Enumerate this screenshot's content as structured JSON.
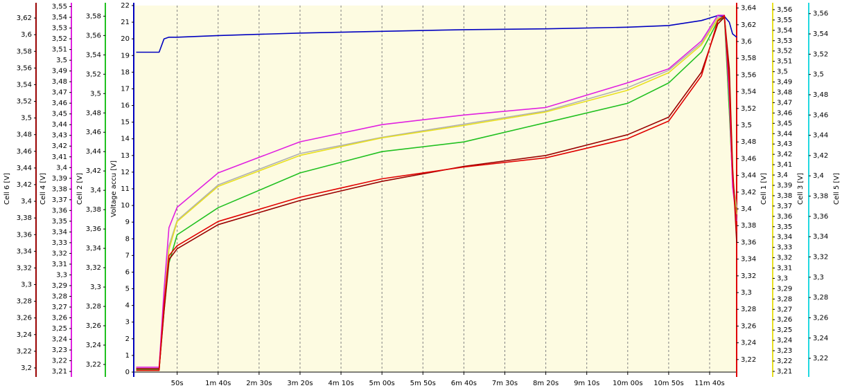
{
  "chart_data": {
    "type": "line",
    "x": [
      0,
      28,
      34,
      40,
      50,
      100,
      200,
      300,
      400,
      500,
      600,
      650,
      690,
      710,
      718,
      724,
      728,
      733
    ],
    "xlim": [
      -3,
      733
    ],
    "xticks": [
      {
        "value": 50,
        "label": "50s"
      },
      {
        "value": 100,
        "label": "1m 40s"
      },
      {
        "value": 150,
        "label": "2m 30s"
      },
      {
        "value": 200,
        "label": "3m 20s"
      },
      {
        "value": 250,
        "label": "4m 10s"
      },
      {
        "value": 300,
        "label": "5m 00s"
      },
      {
        "value": 350,
        "label": "5m 50s"
      },
      {
        "value": 400,
        "label": "6m 40s"
      },
      {
        "value": 450,
        "label": "7m 30s"
      },
      {
        "value": 500,
        "label": "8m 20s"
      },
      {
        "value": 550,
        "label": "9m 10s"
      },
      {
        "value": 600,
        "label": "10m 00s"
      },
      {
        "value": 650,
        "label": "10m 50s"
      },
      {
        "value": 700,
        "label": "11m 40s"
      }
    ],
    "grid": true,
    "axes": [
      {
        "title": "Cell 6 [V]",
        "color": "#990000",
        "side": "left",
        "ylim": [
          3.195,
          3.635
        ],
        "yticks": [
          {
            "value": 3.2,
            "label": "3,2"
          },
          {
            "value": 3.22,
            "label": "3,22"
          },
          {
            "value": 3.24,
            "label": "3,24"
          },
          {
            "value": 3.26,
            "label": "3,26"
          },
          {
            "value": 3.28,
            "label": "3,28"
          },
          {
            "value": 3.3,
            "label": "3,3"
          },
          {
            "value": 3.32,
            "label": "3,32"
          },
          {
            "value": 3.34,
            "label": "3,34"
          },
          {
            "value": 3.36,
            "label": "3,36"
          },
          {
            "value": 3.38,
            "label": "3,38"
          },
          {
            "value": 3.4,
            "label": "3,4"
          },
          {
            "value": 3.42,
            "label": "3,42"
          },
          {
            "value": 3.44,
            "label": "3,44"
          },
          {
            "value": 3.46,
            "label": "3,46"
          },
          {
            "value": 3.48,
            "label": "3,48"
          },
          {
            "value": 3.5,
            "label": "3,5"
          },
          {
            "value": 3.52,
            "label": "3,52"
          },
          {
            "value": 3.54,
            "label": "3,54"
          },
          {
            "value": 3.56,
            "label": "3,56"
          },
          {
            "value": 3.58,
            "label": "3,58"
          },
          {
            "value": 3.6,
            "label": "3,6"
          },
          {
            "value": 3.62,
            "label": "3,62"
          }
        ]
      },
      {
        "title": "Cell 4 [V]",
        "color": "#e020e0",
        "side": "left",
        "ylim": [
          3.2094,
          3.551
        ],
        "yticks": [
          {
            "value": 3.21,
            "label": "3,21"
          },
          {
            "value": 3.22,
            "label": "3,22"
          },
          {
            "value": 3.23,
            "label": "3,23"
          },
          {
            "value": 3.24,
            "label": "3,24"
          },
          {
            "value": 3.25,
            "label": "3,25"
          },
          {
            "value": 3.26,
            "label": "3,26"
          },
          {
            "value": 3.27,
            "label": "3,27"
          },
          {
            "value": 3.28,
            "label": "3,28"
          },
          {
            "value": 3.29,
            "label": "3,29"
          },
          {
            "value": 3.3,
            "label": "3,3"
          },
          {
            "value": 3.31,
            "label": "3,31"
          },
          {
            "value": 3.32,
            "label": "3,32"
          },
          {
            "value": 3.33,
            "label": "3,33"
          },
          {
            "value": 3.34,
            "label": "3,34"
          },
          {
            "value": 3.35,
            "label": "3,35"
          },
          {
            "value": 3.36,
            "label": "3,36"
          },
          {
            "value": 3.37,
            "label": "3,37"
          },
          {
            "value": 3.38,
            "label": "3,38"
          },
          {
            "value": 3.39,
            "label": "3,39"
          },
          {
            "value": 3.4,
            "label": "3,4"
          },
          {
            "value": 3.41,
            "label": "3,41"
          },
          {
            "value": 3.42,
            "label": "3,42"
          },
          {
            "value": 3.43,
            "label": "3,43"
          },
          {
            "value": 3.44,
            "label": "3,44"
          },
          {
            "value": 3.45,
            "label": "3,45"
          },
          {
            "value": 3.46,
            "label": "3,46"
          },
          {
            "value": 3.47,
            "label": "3,47"
          },
          {
            "value": 3.48,
            "label": "3,48"
          },
          {
            "value": 3.49,
            "label": "3,49"
          },
          {
            "value": 3.5,
            "label": "3,5"
          },
          {
            "value": 3.51,
            "label": "3,51"
          },
          {
            "value": 3.52,
            "label": "3,52"
          },
          {
            "value": 3.53,
            "label": "3,53"
          },
          {
            "value": 3.54,
            "label": "3,54"
          },
          {
            "value": 3.55,
            "label": "3,55"
          }
        ]
      },
      {
        "title": "Cell 2 [V]",
        "color": "#20c020",
        "side": "left",
        "ylim": [
          3.2121,
          3.591
        ],
        "yticks": [
          {
            "value": 3.22,
            "label": "3,22"
          },
          {
            "value": 3.24,
            "label": "3,24"
          },
          {
            "value": 3.26,
            "label": "3,26"
          },
          {
            "value": 3.28,
            "label": "3,28"
          },
          {
            "value": 3.3,
            "label": "3,3"
          },
          {
            "value": 3.32,
            "label": "3,32"
          },
          {
            "value": 3.34,
            "label": "3,34"
          },
          {
            "value": 3.36,
            "label": "3,36"
          },
          {
            "value": 3.38,
            "label": "3,38"
          },
          {
            "value": 3.4,
            "label": "3,4"
          },
          {
            "value": 3.42,
            "label": "3,42"
          },
          {
            "value": 3.44,
            "label": "3,44"
          },
          {
            "value": 3.46,
            "label": "3,46"
          },
          {
            "value": 3.48,
            "label": "3,48"
          },
          {
            "value": 3.5,
            "label": "3,5"
          },
          {
            "value": 3.52,
            "label": "3,52"
          },
          {
            "value": 3.54,
            "label": "3,54"
          },
          {
            "value": 3.56,
            "label": "3,56"
          },
          {
            "value": 3.58,
            "label": "3,58"
          }
        ]
      },
      {
        "title": "Voltage accu [V]",
        "color": "#0000c0",
        "side": "left",
        "ylim": [
          0,
          22
        ],
        "yticks": [
          0,
          1,
          2,
          3,
          4,
          5,
          6,
          7,
          8,
          9,
          10,
          11,
          12,
          13,
          14,
          15,
          16,
          17,
          18,
          19,
          20,
          21,
          22
        ]
      },
      {
        "title": "Cell 1 [V]",
        "color": "#e00000",
        "side": "right",
        "ylim": [
          3.205,
          3.643
        ],
        "yticks": [
          {
            "value": 3.22,
            "label": "3,22"
          },
          {
            "value": 3.24,
            "label": "3,24"
          },
          {
            "value": 3.26,
            "label": "3,26"
          },
          {
            "value": 3.28,
            "label": "3,28"
          },
          {
            "value": 3.3,
            "label": "3,3"
          },
          {
            "value": 3.32,
            "label": "3,32"
          },
          {
            "value": 3.34,
            "label": "3,34"
          },
          {
            "value": 3.36,
            "label": "3,36"
          },
          {
            "value": 3.38,
            "label": "3,38"
          },
          {
            "value": 3.4,
            "label": "3,4"
          },
          {
            "value": 3.42,
            "label": "3,42"
          },
          {
            "value": 3.44,
            "label": "3,44"
          },
          {
            "value": 3.46,
            "label": "3,46"
          },
          {
            "value": 3.48,
            "label": "3,48"
          },
          {
            "value": 3.5,
            "label": "3,5"
          },
          {
            "value": 3.52,
            "label": "3,52"
          },
          {
            "value": 3.54,
            "label": "3,54"
          },
          {
            "value": 3.56,
            "label": "3,56"
          },
          {
            "value": 3.58,
            "label": "3,58"
          },
          {
            "value": 3.6,
            "label": "3,6"
          },
          {
            "value": 3.62,
            "label": "3,62"
          },
          {
            "value": 3.64,
            "label": "3,64"
          }
        ]
      },
      {
        "title": "Cell 3 [V]",
        "color": "#e8e020",
        "side": "right",
        "ylim": [
          3.2093,
          3.564
        ],
        "yticks": [
          {
            "value": 3.21,
            "label": "3,21"
          },
          {
            "value": 3.22,
            "label": "3,22"
          },
          {
            "value": 3.23,
            "label": "3,23"
          },
          {
            "value": 3.24,
            "label": "3,24"
          },
          {
            "value": 3.25,
            "label": "3,25"
          },
          {
            "value": 3.26,
            "label": "3,26"
          },
          {
            "value": 3.27,
            "label": "3,27"
          },
          {
            "value": 3.28,
            "label": "3,28"
          },
          {
            "value": 3.29,
            "label": "3,29"
          },
          {
            "value": 3.3,
            "label": "3,3"
          },
          {
            "value": 3.31,
            "label": "3,31"
          },
          {
            "value": 3.32,
            "label": "3,32"
          },
          {
            "value": 3.33,
            "label": "3,33"
          },
          {
            "value": 3.34,
            "label": "3,34"
          },
          {
            "value": 3.35,
            "label": "3,35"
          },
          {
            "value": 3.36,
            "label": "3,36"
          },
          {
            "value": 3.37,
            "label": "3,37"
          },
          {
            "value": 3.38,
            "label": "3,38"
          },
          {
            "value": 3.39,
            "label": "3,39"
          },
          {
            "value": 3.4,
            "label": "3,4"
          },
          {
            "value": 3.41,
            "label": "3,41"
          },
          {
            "value": 3.42,
            "label": "3,42"
          },
          {
            "value": 3.43,
            "label": "3,43"
          },
          {
            "value": 3.44,
            "label": "3,44"
          },
          {
            "value": 3.45,
            "label": "3,45"
          },
          {
            "value": 3.46,
            "label": "3,46"
          },
          {
            "value": 3.47,
            "label": "3,47"
          },
          {
            "value": 3.48,
            "label": "3,48"
          },
          {
            "value": 3.49,
            "label": "3,49"
          },
          {
            "value": 3.5,
            "label": "3,5"
          },
          {
            "value": 3.51,
            "label": "3,51"
          },
          {
            "value": 3.52,
            "label": "3,52"
          },
          {
            "value": 3.53,
            "label": "3,53"
          },
          {
            "value": 3.54,
            "label": "3,54"
          },
          {
            "value": 3.55,
            "label": "3,55"
          },
          {
            "value": 3.56,
            "label": "3,56"
          }
        ]
      },
      {
        "title": "Cell 5 [V]",
        "color": "#20d8e0",
        "side": "right",
        "ylim": [
          3.2064,
          3.568
        ],
        "yticks": [
          {
            "value": 3.22,
            "label": "3,22"
          },
          {
            "value": 3.24,
            "label": "3,24"
          },
          {
            "value": 3.26,
            "label": "3,26"
          },
          {
            "value": 3.28,
            "label": "3,28"
          },
          {
            "value": 3.3,
            "label": "3,3"
          },
          {
            "value": 3.32,
            "label": "3,32"
          },
          {
            "value": 3.34,
            "label": "3,34"
          },
          {
            "value": 3.36,
            "label": "3,36"
          },
          {
            "value": 3.38,
            "label": "3,38"
          },
          {
            "value": 3.4,
            "label": "3,4"
          },
          {
            "value": 3.42,
            "label": "3,42"
          },
          {
            "value": 3.44,
            "label": "3,44"
          },
          {
            "value": 3.46,
            "label": "3,46"
          },
          {
            "value": 3.48,
            "label": "3,48"
          },
          {
            "value": 3.5,
            "label": "3,5"
          },
          {
            "value": 3.52,
            "label": "3,52"
          },
          {
            "value": 3.54,
            "label": "3,54"
          },
          {
            "value": 3.56,
            "label": "3,56"
          }
        ]
      }
    ],
    "series": [
      {
        "axis": 3,
        "color": "#0000c0",
        "values": [
          19.2,
          19.2,
          20.0,
          20.1,
          20.1,
          20.2,
          20.35,
          20.45,
          20.55,
          20.6,
          20.7,
          20.8,
          21.1,
          21.4,
          21.35,
          21.0,
          20.3,
          20.1
        ]
      },
      {
        "axis": 6,
        "color": "#b0b0b0",
        "values": [
          3.21,
          3.21,
          3.277,
          3.331,
          3.356,
          3.391,
          3.422,
          3.438,
          3.451,
          3.464,
          3.487,
          3.504,
          3.531,
          3.556,
          3.557,
          3.471,
          3.399,
          3.369
        ]
      },
      {
        "axis": 5,
        "color": "#e8e020",
        "values": [
          3.211,
          3.211,
          3.275,
          3.328,
          3.355,
          3.389,
          3.419,
          3.436,
          3.448,
          3.461,
          3.482,
          3.499,
          3.526,
          3.551,
          3.553,
          3.462,
          3.395,
          3.362
        ]
      },
      {
        "axis": 2,
        "color": "#20c020",
        "values": [
          3.215,
          3.215,
          3.275,
          3.325,
          3.354,
          3.382,
          3.418,
          3.44,
          3.45,
          3.47,
          3.49,
          3.511,
          3.543,
          3.575,
          3.579,
          3.482,
          3.411,
          3.368
        ]
      },
      {
        "axis": 1,
        "color": "#e020e0",
        "values": [
          3.214,
          3.214,
          3.286,
          3.344,
          3.363,
          3.395,
          3.424,
          3.44,
          3.449,
          3.456,
          3.479,
          3.492,
          3.518,
          3.542,
          3.542,
          3.466,
          3.382,
          3.35
        ]
      },
      {
        "axis": 0,
        "color": "#990000",
        "values": [
          3.199,
          3.199,
          3.268,
          3.33,
          3.343,
          3.372,
          3.401,
          3.424,
          3.442,
          3.455,
          3.48,
          3.501,
          3.555,
          3.613,
          3.621,
          3.559,
          3.442,
          3.351
        ]
      },
      {
        "axis": 4,
        "color": "#e00000",
        "values": [
          3.207,
          3.207,
          3.286,
          3.344,
          3.356,
          3.385,
          3.414,
          3.436,
          3.45,
          3.461,
          3.484,
          3.505,
          3.559,
          3.625,
          3.631,
          3.55,
          3.443,
          3.373
        ]
      }
    ]
  }
}
